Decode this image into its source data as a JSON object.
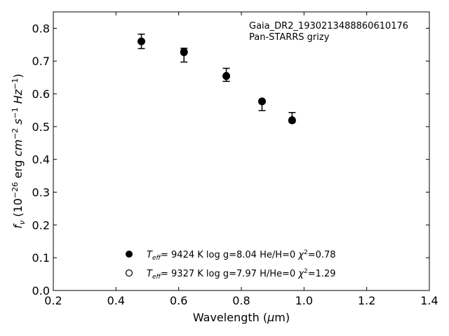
{
  "chart_data": {
    "type": "scatter",
    "annotation_lines": [
      "Gaia_DR2_1930213488860610176",
      "Pan-STARRS grizy"
    ],
    "xlabel": "Wavelength (μm)",
    "ylabel": "f_ν (10^-26 erg cm^-2 s^-1 Hz^-1)",
    "xlim": [
      0.2,
      1.4
    ],
    "ylim": [
      0.0,
      0.85
    ],
    "xticks": [
      "0.2",
      "0.4",
      "0.6",
      "0.8",
      "1.0",
      "1.2",
      "1.4"
    ],
    "yticks": [
      "0.0",
      "0.1",
      "0.2",
      "0.3",
      "0.4",
      "0.5",
      "0.6",
      "0.7",
      "0.8"
    ],
    "grid": false,
    "legend_position": "bottom-center",
    "observed": {
      "x": [
        0.481,
        0.617,
        0.752,
        0.866,
        0.962
      ],
      "y": [
        0.76,
        0.718,
        0.658,
        0.563,
        0.528
      ],
      "err": [
        0.022,
        0.021,
        0.02,
        0.014,
        0.015
      ]
    },
    "series": [
      {
        "marker": "filled",
        "x": [
          0.481,
          0.617,
          0.752,
          0.866,
          0.962
        ],
        "y": [
          0.76,
          0.727,
          0.654,
          0.577,
          0.519
        ],
        "label": "T_eff=  9424 K  log g=8.04  He/H=0  χ²=0.78"
      },
      {
        "marker": "open",
        "x": [
          0.481,
          0.617,
          0.752,
          0.866,
          0.962
        ],
        "y": [
          0.76,
          0.73,
          0.656,
          0.578,
          0.521
        ],
        "label": "T_eff=  9327 K  log g=7.97  H/He=0  χ²=1.29"
      }
    ]
  }
}
